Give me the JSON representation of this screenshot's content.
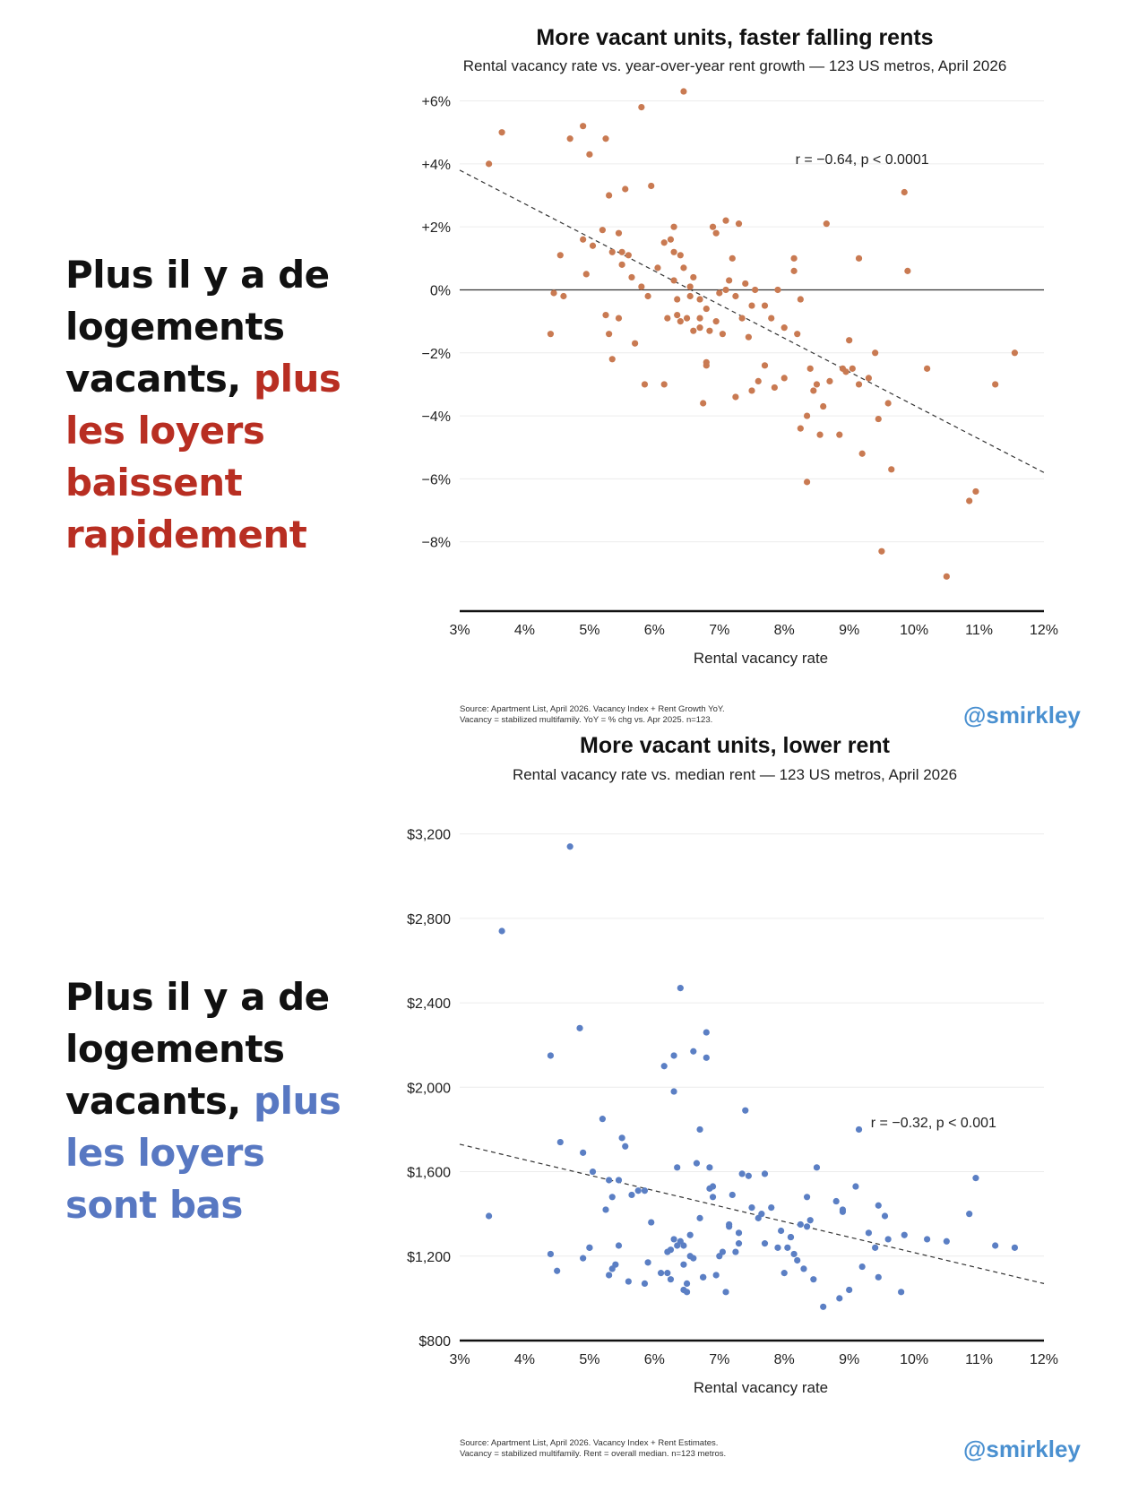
{
  "charts": [
    {
      "headline": {
        "before": "Plus il y a de logements vacants, ",
        "accent": "plus les loyers baissent rapidement",
        "accent_color": "#b82e22"
      },
      "title": "More vacant units, faster falling rents",
      "subtitle": "Rental vacancy rate vs. year-over-year rent growth — 123 US metros, April 2026",
      "source_lines": [
        "Source: Apartment List, April 2026. Vacancy Index + Rent Growth YoY.",
        "Vacancy = stabilized multifamily. YoY = % chg vs. Apr 2025. n=123."
      ],
      "handle": "@smirkley"
    },
    {
      "headline": {
        "before": "Plus il y a de logements vacants, ",
        "accent": "plus les loyers sont bas",
        "accent_color": "#5878c2"
      },
      "title": "More vacant units, lower rent",
      "subtitle": "Rental vacancy rate vs. median rent — 123 US metros, April 2026",
      "source_lines": [
        "Source: Apartment List, April 2026. Vacancy Index + Rent Estimates.",
        "Vacancy = stabilized multifamily. Rent = overall median. n=123 metros."
      ],
      "handle": "@smirkley"
    }
  ],
  "chart_data": [
    {
      "type": "scatter",
      "xlabel": "Rental vacancy rate",
      "ylabel": "",
      "xlim": [
        3,
        12
      ],
      "ylim": [
        -10.2,
        6.5
      ],
      "x_ticks": [
        3,
        4,
        5,
        6,
        7,
        8,
        9,
        10,
        11,
        12
      ],
      "x_tick_labels": [
        "3%",
        "4%",
        "5%",
        "6%",
        "7%",
        "8%",
        "9%",
        "10%",
        "11%",
        "12%"
      ],
      "y_ticks": [
        6,
        4,
        2,
        0,
        -2,
        -4,
        -6,
        -8
      ],
      "y_tick_labels": [
        "+6%",
        "+4%",
        "+2%",
        "0%",
        "−2%",
        "−4%",
        "−6%",
        "−8%"
      ],
      "zero_line": 0,
      "grid": true,
      "color": "#c97a52",
      "annotation": "r = −0.64, p < 0.0001",
      "annotation_at": [
        9.2,
        4.0
      ],
      "trendline": {
        "x": [
          3,
          12
        ],
        "y": [
          3.8,
          -5.8
        ]
      },
      "points": [
        [
          3.45,
          4.0
        ],
        [
          3.65,
          5.0
        ],
        [
          4.45,
          -0.1
        ],
        [
          4.4,
          -1.4
        ],
        [
          4.55,
          1.1
        ],
        [
          4.6,
          -0.2
        ],
        [
          4.7,
          4.8
        ],
        [
          4.9,
          5.2
        ],
        [
          4.9,
          1.6
        ],
        [
          5.0,
          4.3
        ],
        [
          4.95,
          0.5
        ],
        [
          5.05,
          1.4
        ],
        [
          5.2,
          1.9
        ],
        [
          5.25,
          4.8
        ],
        [
          5.25,
          -0.8
        ],
        [
          5.3,
          -1.4
        ],
        [
          5.35,
          -2.2
        ],
        [
          5.3,
          3.0
        ],
        [
          5.35,
          1.2
        ],
        [
          5.45,
          1.8
        ],
        [
          5.5,
          1.2
        ],
        [
          5.5,
          0.8
        ],
        [
          5.45,
          -0.9
        ],
        [
          5.55,
          3.2
        ],
        [
          5.6,
          1.1
        ],
        [
          5.65,
          0.4
        ],
        [
          5.8,
          5.8
        ],
        [
          5.85,
          -3.0
        ],
        [
          5.8,
          0.1
        ],
        [
          5.9,
          -0.2
        ],
        [
          5.95,
          3.3
        ],
        [
          6.05,
          0.7
        ],
        [
          6.15,
          1.5
        ],
        [
          6.15,
          -3.0
        ],
        [
          6.25,
          1.6
        ],
        [
          6.3,
          2.0
        ],
        [
          6.3,
          1.2
        ],
        [
          6.3,
          0.3
        ],
        [
          6.35,
          -0.3
        ],
        [
          6.35,
          -0.8
        ],
        [
          6.4,
          1.1
        ],
        [
          6.45,
          0.7
        ],
        [
          6.45,
          6.3
        ],
        [
          6.5,
          -0.9
        ],
        [
          6.55,
          -0.2
        ],
        [
          6.6,
          0.4
        ],
        [
          6.7,
          -0.3
        ],
        [
          6.7,
          -0.9
        ],
        [
          6.7,
          -1.2
        ],
        [
          6.75,
          -3.6
        ],
        [
          6.8,
          -2.3
        ],
        [
          6.8,
          -0.6
        ],
        [
          6.85,
          -1.3
        ],
        [
          6.9,
          2.0
        ],
        [
          6.95,
          1.8
        ],
        [
          7.0,
          -0.1
        ],
        [
          7.05,
          -1.4
        ],
        [
          7.1,
          2.2
        ],
        [
          7.15,
          0.3
        ],
        [
          7.2,
          1.0
        ],
        [
          7.25,
          -0.2
        ],
        [
          7.25,
          -3.4
        ],
        [
          7.3,
          2.1
        ],
        [
          7.35,
          -0.9
        ],
        [
          7.4,
          0.2
        ],
        [
          7.45,
          -1.5
        ],
        [
          7.5,
          -3.2
        ],
        [
          7.5,
          -0.5
        ],
        [
          7.6,
          -2.9
        ],
        [
          7.7,
          -2.4
        ],
        [
          7.7,
          -0.5
        ],
        [
          7.8,
          -0.9
        ],
        [
          8.0,
          -2.8
        ],
        [
          8.0,
          -1.2
        ],
        [
          8.15,
          1.0
        ],
        [
          8.15,
          0.6
        ],
        [
          8.2,
          -1.4
        ],
        [
          8.25,
          -0.3
        ],
        [
          8.25,
          -4.4
        ],
        [
          8.35,
          -4.0
        ],
        [
          8.4,
          -2.5
        ],
        [
          8.45,
          -3.2
        ],
        [
          8.5,
          -3.0
        ],
        [
          8.55,
          -4.6
        ],
        [
          8.65,
          2.1
        ],
        [
          8.85,
          -4.6
        ],
        [
          8.9,
          -2.5
        ],
        [
          8.95,
          -2.6
        ],
        [
          9.0,
          -1.6
        ],
        [
          9.05,
          -2.5
        ],
        [
          9.15,
          1.0
        ],
        [
          9.15,
          -3.0
        ],
        [
          9.2,
          -5.2
        ],
        [
          9.3,
          -2.8
        ],
        [
          9.4,
          -2.0
        ],
        [
          9.45,
          -4.1
        ],
        [
          9.5,
          -8.3
        ],
        [
          9.6,
          -3.6
        ],
        [
          9.65,
          -5.7
        ],
        [
          9.85,
          3.1
        ],
        [
          9.9,
          0.6
        ],
        [
          10.2,
          -2.5
        ],
        [
          10.5,
          -9.1
        ],
        [
          10.85,
          -6.7
        ],
        [
          10.95,
          -6.4
        ],
        [
          11.25,
          -3.0
        ],
        [
          11.55,
          -2.0
        ],
        [
          6.6,
          -1.3
        ],
        [
          6.2,
          -0.9
        ],
        [
          5.7,
          -1.7
        ],
        [
          8.35,
          -6.1
        ],
        [
          7.9,
          0.0
        ],
        [
          6.8,
          -2.4
        ],
        [
          7.1,
          0.0
        ],
        [
          8.7,
          -2.9
        ],
        [
          6.95,
          -1.0
        ],
        [
          7.55,
          0.0
        ],
        [
          6.55,
          0.1
        ],
        [
          7.85,
          -3.1
        ],
        [
          6.4,
          -1.0
        ],
        [
          8.6,
          -3.7
        ]
      ]
    },
    {
      "type": "scatter",
      "xlabel": "Rental vacancy rate",
      "ylabel": "",
      "xlim": [
        3,
        12
      ],
      "ylim": [
        800,
        3330
      ],
      "x_ticks": [
        3,
        4,
        5,
        6,
        7,
        8,
        9,
        10,
        11,
        12
      ],
      "x_tick_labels": [
        "3%",
        "4%",
        "5%",
        "6%",
        "7%",
        "8%",
        "9%",
        "10%",
        "11%",
        "12%"
      ],
      "y_ticks": [
        3200,
        2800,
        2400,
        2000,
        1600,
        1200,
        800
      ],
      "y_tick_labels": [
        "$3,200",
        "$2,800",
        "$2,400",
        "$2,000",
        "$1,600",
        "$1,200",
        "$800"
      ],
      "grid": true,
      "color": "#5b7fc4",
      "annotation": "r = −0.32, p < 0.001",
      "annotation_at": [
        10.3,
        1810
      ],
      "trendline": {
        "x": [
          3,
          12
        ],
        "y": [
          1730,
          1070
        ]
      },
      "points": [
        [
          3.45,
          1390
        ],
        [
          3.65,
          2740
        ],
        [
          4.4,
          2150
        ],
        [
          4.4,
          1210
        ],
        [
          4.5,
          1130
        ],
        [
          4.55,
          1740
        ],
        [
          4.7,
          3140
        ],
        [
          4.85,
          2280
        ],
        [
          4.9,
          1690
        ],
        [
          4.9,
          1190
        ],
        [
          5.0,
          1240
        ],
        [
          5.05,
          1600
        ],
        [
          5.2,
          1850
        ],
        [
          5.25,
          1420
        ],
        [
          5.3,
          1560
        ],
        [
          5.3,
          1110
        ],
        [
          5.35,
          1480
        ],
        [
          5.4,
          1160
        ],
        [
          5.45,
          1250
        ],
        [
          5.5,
          1760
        ],
        [
          5.55,
          1720
        ],
        [
          5.6,
          1080
        ],
        [
          5.65,
          1490
        ],
        [
          5.75,
          1510
        ],
        [
          5.85,
          1070
        ],
        [
          5.9,
          1170
        ],
        [
          5.95,
          1360
        ],
        [
          6.1,
          1120
        ],
        [
          6.15,
          2100
        ],
        [
          6.2,
          1220
        ],
        [
          6.25,
          1090
        ],
        [
          6.3,
          2150
        ],
        [
          6.3,
          1980
        ],
        [
          6.35,
          1620
        ],
        [
          6.35,
          1250
        ],
        [
          6.4,
          2470
        ],
        [
          6.45,
          1160
        ],
        [
          6.45,
          1040
        ],
        [
          6.5,
          1070
        ],
        [
          6.55,
          1300
        ],
        [
          6.6,
          2170
        ],
        [
          6.6,
          1190
        ],
        [
          6.65,
          1640
        ],
        [
          6.7,
          1380
        ],
        [
          6.7,
          1800
        ],
        [
          6.75,
          1100
        ],
        [
          6.8,
          2260
        ],
        [
          6.8,
          2140
        ],
        [
          6.85,
          1520
        ],
        [
          6.85,
          1620
        ],
        [
          6.9,
          1480
        ],
        [
          6.95,
          1110
        ],
        [
          7.0,
          1200
        ],
        [
          7.05,
          1220
        ],
        [
          7.1,
          1030
        ],
        [
          7.15,
          1340
        ],
        [
          7.2,
          1490
        ],
        [
          7.25,
          1220
        ],
        [
          7.3,
          1310
        ],
        [
          7.35,
          1590
        ],
        [
          7.4,
          1890
        ],
        [
          7.45,
          1580
        ],
        [
          7.5,
          1430
        ],
        [
          7.6,
          1380
        ],
        [
          7.65,
          1400
        ],
        [
          7.7,
          1260
        ],
        [
          7.8,
          1430
        ],
        [
          7.95,
          1320
        ],
        [
          8.0,
          1120
        ],
        [
          8.05,
          1240
        ],
        [
          8.1,
          1290
        ],
        [
          8.15,
          1210
        ],
        [
          8.2,
          1180
        ],
        [
          8.25,
          1350
        ],
        [
          8.3,
          1140
        ],
        [
          8.35,
          1480
        ],
        [
          8.4,
          1370
        ],
        [
          8.45,
          1090
        ],
        [
          8.5,
          1620
        ],
        [
          8.6,
          960
        ],
        [
          8.8,
          1460
        ],
        [
          8.85,
          1000
        ],
        [
          8.9,
          1410
        ],
        [
          9.0,
          1040
        ],
        [
          9.1,
          1530
        ],
        [
          9.15,
          1800
        ],
        [
          9.2,
          1150
        ],
        [
          9.3,
          1310
        ],
        [
          9.4,
          1240
        ],
        [
          9.45,
          1440
        ],
        [
          9.55,
          1390
        ],
        [
          9.6,
          1280
        ],
        [
          9.8,
          1030
        ],
        [
          9.85,
          1300
        ],
        [
          10.2,
          1280
        ],
        [
          10.5,
          1270
        ],
        [
          10.85,
          1400
        ],
        [
          10.95,
          1570
        ],
        [
          11.25,
          1250
        ],
        [
          11.55,
          1240
        ],
        [
          6.4,
          1270
        ],
        [
          6.45,
          1250
        ],
        [
          6.3,
          1280
        ],
        [
          7.15,
          1350
        ],
        [
          8.35,
          1340
        ],
        [
          9.45,
          1100
        ],
        [
          5.45,
          1560
        ],
        [
          6.2,
          1120
        ],
        [
          7.7,
          1590
        ],
        [
          5.0,
          1240
        ],
        [
          6.5,
          1030
        ],
        [
          7.9,
          1240
        ],
        [
          8.9,
          1420
        ],
        [
          5.35,
          1140
        ],
        [
          6.9,
          1530
        ],
        [
          5.85,
          1510
        ],
        [
          8.1,
          1290
        ],
        [
          6.75,
          1100
        ],
        [
          6.55,
          1200
        ],
        [
          7.3,
          1260
        ],
        [
          6.25,
          1230
        ]
      ]
    }
  ]
}
